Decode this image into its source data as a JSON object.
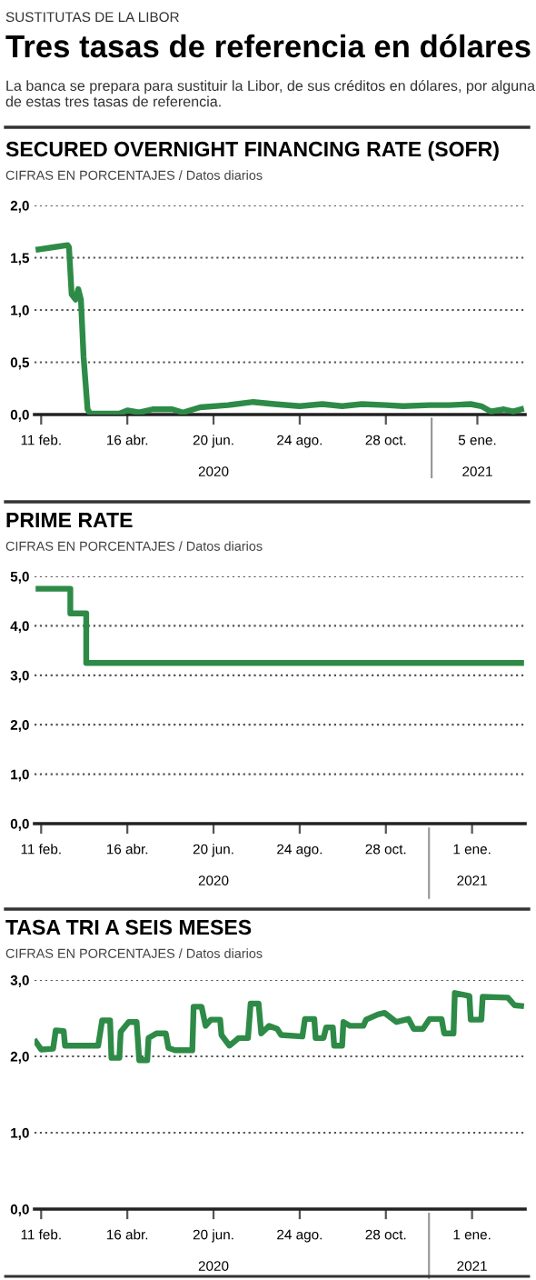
{
  "chart_data": [
    {
      "type": "line",
      "title": "SECURED OVERNIGHT FINANCING RATE (SOFR)",
      "subtitle": "CIFRAS EN PORCENTAJES / Datos diarios",
      "annotations": [
        "SUSTITUTAS DE LA LIBOR",
        "Tres tasas de referencia en dólares",
        "La banca se prepara para sustituir la Libor, de sus créditos en dólares, por alguna de estas tres tasas de referencia.",
        "2020",
        "2021"
      ],
      "x": [
        "2020-02-09",
        "2020-02-20",
        "2020-03-02",
        "2020-03-03",
        "2020-03-05",
        "2020-03-08",
        "2020-03-10",
        "2020-03-12",
        "2020-03-14",
        "2020-03-17",
        "2020-03-19",
        "2020-04-10",
        "2020-04-16",
        "2020-04-25",
        "2020-05-05",
        "2020-05-20",
        "2020-05-28",
        "2020-06-10",
        "2020-07-01",
        "2020-07-20",
        "2020-08-05",
        "2020-08-24",
        "2020-09-10",
        "2020-09-25",
        "2020-10-10",
        "2020-10-28",
        "2020-11-10",
        "2020-11-30",
        "2020-12-15",
        "2020-12-31",
        "2021-01-08",
        "2021-01-15",
        "2021-01-25",
        "2021-02-01",
        "2021-02-07"
      ],
      "series": [
        {
          "color": "#2e8b47",
          "values": [
            1.58,
            1.6,
            1.62,
            1.6,
            1.15,
            1.1,
            1.2,
            1.1,
            0.55,
            0.05,
            0.01,
            0.01,
            0.04,
            0.02,
            0.05,
            0.05,
            0.02,
            0.07,
            0.09,
            0.12,
            0.1,
            0.08,
            0.1,
            0.08,
            0.1,
            0.09,
            0.08,
            0.09,
            0.09,
            0.1,
            0.08,
            0.03,
            0.05,
            0.03,
            0.05
          ]
        }
      ],
      "xlim": [
        "2020-02-06",
        "2021-02-10"
      ],
      "ylim": [
        0,
        2
      ],
      "xticks": [
        {
          "value": "2020-02-11",
          "label": "11 feb."
        },
        {
          "value": "2020-04-16",
          "label": "16 abr."
        },
        {
          "value": "2020-06-20",
          "label": "20 jun."
        },
        {
          "value": "2020-08-24",
          "label": "24 ago."
        },
        {
          "value": "2020-10-28",
          "label": "28 oct."
        },
        {
          "value": "2021-01-05",
          "label": "5 ene."
        }
      ],
      "yticks": [
        {
          "value": 0,
          "label": "0,0"
        },
        {
          "value": 0.5,
          "label": "0,5"
        },
        {
          "value": 1,
          "label": "1,0"
        },
        {
          "value": 1.5,
          "label": "1,5"
        },
        {
          "value": 2,
          "label": "2,0"
        }
      ],
      "grid": "y",
      "line_style": "solid",
      "marker": "none"
    },
    {
      "type": "step",
      "title": "PRIME RATE",
      "subtitle": "CIFRAS EN PORCENTAJES / Datos diarios",
      "annotations": [
        "2020",
        "2021"
      ],
      "x": [
        "2020-02-09",
        "2020-03-04",
        "2020-03-16",
        "2021-02-07"
      ],
      "series": [
        {
          "color": "#2e8b47",
          "values": [
            4.75,
            4.25,
            3.25,
            3.25
          ]
        }
      ],
      "xlim": [
        "2020-02-06",
        "2021-02-10"
      ],
      "ylim": [
        0,
        5
      ],
      "xticks": [
        {
          "value": "2020-02-11",
          "label": "11 feb."
        },
        {
          "value": "2020-04-16",
          "label": "16 abr."
        },
        {
          "value": "2020-06-20",
          "label": "20 jun."
        },
        {
          "value": "2020-08-24",
          "label": "24 ago."
        },
        {
          "value": "2020-10-28",
          "label": "28 oct."
        },
        {
          "value": "2021-01-01",
          "label": "1 ene."
        }
      ],
      "yticks": [
        {
          "value": 0,
          "label": "0,0"
        },
        {
          "value": 1,
          "label": "1,0"
        },
        {
          "value": 2,
          "label": "2,0"
        },
        {
          "value": 3,
          "label": "3,0"
        },
        {
          "value": 4,
          "label": "4,0"
        },
        {
          "value": 5,
          "label": "5,0"
        }
      ],
      "grid": "y",
      "line_style": "solid",
      "marker": "none"
    },
    {
      "type": "line",
      "title": "TASA TRI A SEIS MESES",
      "subtitle": "CIFRAS EN PORCENTAJES / Datos diarios",
      "annotations": [
        "2020",
        "2021"
      ],
      "x": [
        "2020-02-07",
        "2020-02-11",
        "2020-02-20",
        "2020-02-22",
        "2020-02-28",
        "2020-02-29",
        "2020-03-25",
        "2020-03-28",
        "2020-04-03",
        "2020-04-04",
        "2020-04-10",
        "2020-04-11",
        "2020-04-17",
        "2020-04-23",
        "2020-04-25",
        "2020-05-01",
        "2020-05-02",
        "2020-05-08",
        "2020-05-15",
        "2020-05-17",
        "2020-05-22",
        "2020-06-04",
        "2020-06-05",
        "2020-06-11",
        "2020-06-14",
        "2020-06-18",
        "2020-06-25",
        "2020-06-26",
        "2020-07-02",
        "2020-07-09",
        "2020-07-16",
        "2020-07-18",
        "2020-07-24",
        "2020-07-26",
        "2020-08-01",
        "2020-08-07",
        "2020-08-10",
        "2020-08-26",
        "2020-08-28",
        "2020-09-04",
        "2020-09-05",
        "2020-09-11",
        "2020-09-13",
        "2020-09-18",
        "2020-09-19",
        "2020-09-25",
        "2020-09-26",
        "2020-10-01",
        "2020-10-11",
        "2020-10-13",
        "2020-10-22",
        "2020-10-27",
        "2020-11-05",
        "2020-11-14",
        "2020-11-18",
        "2020-11-25",
        "2020-11-30",
        "2020-12-09",
        "2020-12-11",
        "2020-12-18",
        "2020-12-19",
        "2020-12-30",
        "2020-12-31",
        "2021-01-08",
        "2021-01-09",
        "2021-01-28",
        "2021-02-02",
        "2021-02-07"
      ],
      "series": [
        {
          "color": "#2e8b47",
          "values": [
            2.19,
            2.09,
            2.1,
            2.34,
            2.33,
            2.14,
            2.14,
            2.47,
            2.47,
            1.98,
            1.98,
            2.32,
            2.45,
            2.45,
            1.95,
            1.95,
            2.24,
            2.3,
            2.3,
            2.11,
            2.08,
            2.08,
            2.65,
            2.65,
            2.4,
            2.48,
            2.48,
            2.28,
            2.14,
            2.24,
            2.24,
            2.69,
            2.69,
            2.3,
            2.4,
            2.36,
            2.28,
            2.26,
            2.49,
            2.49,
            2.24,
            2.24,
            2.38,
            2.38,
            2.14,
            2.14,
            2.45,
            2.4,
            2.4,
            2.48,
            2.55,
            2.57,
            2.45,
            2.49,
            2.36,
            2.36,
            2.49,
            2.49,
            2.3,
            2.3,
            2.83,
            2.79,
            2.48,
            2.48,
            2.78,
            2.77,
            2.67,
            2.66
          ]
        }
      ],
      "xlim": [
        "2020-02-06",
        "2021-02-10"
      ],
      "ylim": [
        0,
        3
      ],
      "xticks": [
        {
          "value": "2020-02-11",
          "label": "11 feb."
        },
        {
          "value": "2020-04-16",
          "label": "16 abr."
        },
        {
          "value": "2020-06-20",
          "label": "20 jun."
        },
        {
          "value": "2020-08-24",
          "label": "24 ago."
        },
        {
          "value": "2020-10-28",
          "label": "28 oct."
        },
        {
          "value": "2021-01-01",
          "label": "1 ene."
        }
      ],
      "yticks": [
        {
          "value": 0,
          "label": "0,0"
        },
        {
          "value": 1,
          "label": "1,0"
        },
        {
          "value": 2,
          "label": "2,0"
        },
        {
          "value": 3,
          "label": "3,0"
        }
      ],
      "grid": "y",
      "line_style": "solid",
      "marker": "none"
    }
  ]
}
